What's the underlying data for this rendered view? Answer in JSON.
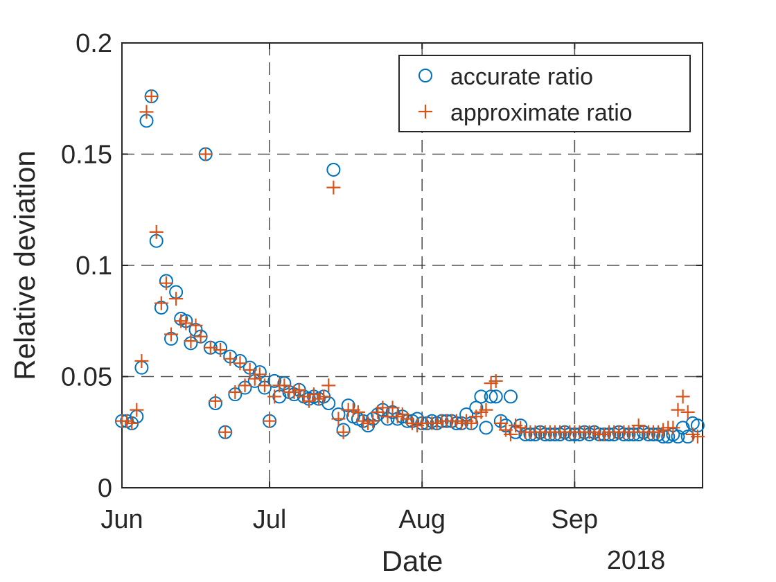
{
  "chart_data": {
    "type": "scatter",
    "xlabel": "Date",
    "ylabel": "Relative deviation",
    "year_label": "2018",
    "x_unit": "days since Jun 1",
    "xlim": [
      0,
      118
    ],
    "ylim": [
      0,
      0.2
    ],
    "grid": true,
    "legend_position": "top-right",
    "x_ticks": [
      {
        "value": 0,
        "label": "Jun"
      },
      {
        "value": 30,
        "label": "Jul"
      },
      {
        "value": 61,
        "label": "Aug"
      },
      {
        "value": 92,
        "label": "Sep"
      }
    ],
    "y_ticks": [
      {
        "value": 0,
        "label": "0"
      },
      {
        "value": 0.05,
        "label": "0.05"
      },
      {
        "value": 0.1,
        "label": "0.1"
      },
      {
        "value": 0.15,
        "label": "0.15"
      },
      {
        "value": 0.2,
        "label": "0.2"
      }
    ],
    "series": [
      {
        "name": "accurate ratio",
        "marker": "circle",
        "color": "#0072BD",
        "x": [
          0,
          1,
          2,
          3,
          4,
          5,
          6,
          7,
          8,
          9,
          10,
          11,
          12,
          13,
          14,
          15,
          16,
          17,
          18,
          19,
          20,
          21,
          22,
          23,
          24,
          25,
          26,
          27,
          28,
          29,
          30,
          31,
          32,
          33,
          34,
          35,
          36,
          37,
          38,
          39,
          40,
          41,
          42,
          43,
          44,
          45,
          46,
          47,
          48,
          49,
          50,
          51,
          52,
          53,
          54,
          55,
          56,
          57,
          58,
          59,
          60,
          61,
          62,
          63,
          64,
          65,
          66,
          67,
          68,
          69,
          70,
          71,
          72,
          73,
          74,
          75,
          76,
          77,
          78,
          79,
          80,
          81,
          82,
          83,
          84,
          85,
          86,
          87,
          88,
          89,
          90,
          91,
          92,
          93,
          94,
          95,
          96,
          97,
          98,
          99,
          100,
          101,
          102,
          103,
          104,
          105,
          106,
          107,
          108,
          109,
          110,
          111,
          112,
          113,
          114,
          115,
          116,
          117
        ],
        "y": [
          0.03,
          0.03,
          0.029,
          0.032,
          0.054,
          0.165,
          0.176,
          0.111,
          0.081,
          0.093,
          0.067,
          0.088,
          0.076,
          0.075,
          0.065,
          0.071,
          0.068,
          0.15,
          0.063,
          0.038,
          0.063,
          0.025,
          0.059,
          0.042,
          0.057,
          0.045,
          0.054,
          0.048,
          0.052,
          0.045,
          0.03,
          0.048,
          0.041,
          0.047,
          0.043,
          0.042,
          0.044,
          0.041,
          0.04,
          0.041,
          0.04,
          0.041,
          0.038,
          0.143,
          0.033,
          0.026,
          0.037,
          0.032,
          0.031,
          0.03,
          0.028,
          0.031,
          0.033,
          0.035,
          0.031,
          0.034,
          0.031,
          0.032,
          0.03,
          0.03,
          0.031,
          0.029,
          0.029,
          0.03,
          0.029,
          0.03,
          0.03,
          0.03,
          0.029,
          0.029,
          0.033,
          0.029,
          0.036,
          0.041,
          0.027,
          0.041,
          0.041,
          0.03,
          0.028,
          0.041,
          0.025,
          0.028,
          0.024,
          0.024,
          0.024,
          0.025,
          0.024,
          0.024,
          0.024,
          0.024,
          0.025,
          0.024,
          0.024,
          0.024,
          0.025,
          0.024,
          0.025,
          0.024,
          0.024,
          0.024,
          0.024,
          0.025,
          0.024,
          0.024,
          0.024,
          0.024,
          0.025,
          0.024,
          0.024,
          0.024,
          0.023,
          0.023,
          0.024,
          0.023,
          0.027,
          0.023,
          0.029,
          0.028
        ]
      },
      {
        "name": "approximate ratio",
        "marker": "plus",
        "color": "#D95319",
        "x": [
          0,
          1,
          2,
          3,
          4,
          5,
          6,
          7,
          8,
          9,
          10,
          11,
          12,
          13,
          14,
          15,
          16,
          17,
          18,
          19,
          20,
          21,
          22,
          23,
          24,
          25,
          26,
          27,
          28,
          29,
          30,
          31,
          32,
          33,
          34,
          35,
          36,
          37,
          38,
          39,
          40,
          41,
          42,
          43,
          44,
          45,
          46,
          47,
          48,
          49,
          50,
          51,
          52,
          53,
          54,
          55,
          56,
          57,
          58,
          59,
          60,
          61,
          62,
          63,
          64,
          65,
          66,
          67,
          68,
          69,
          70,
          71,
          72,
          73,
          74,
          75,
          76,
          77,
          78,
          79,
          80,
          81,
          82,
          83,
          84,
          85,
          86,
          87,
          88,
          89,
          90,
          91,
          92,
          93,
          94,
          95,
          96,
          97,
          98,
          99,
          100,
          101,
          102,
          103,
          104,
          105,
          106,
          107,
          108,
          109,
          110,
          111,
          112,
          113,
          114,
          115,
          116,
          117
        ],
        "y": [
          0.03,
          0.03,
          0.029,
          0.035,
          0.057,
          0.169,
          0.176,
          0.115,
          0.083,
          0.092,
          0.069,
          0.085,
          0.075,
          0.074,
          0.066,
          0.073,
          0.068,
          0.15,
          0.063,
          0.039,
          0.062,
          0.025,
          0.058,
          0.043,
          0.056,
          0.046,
          0.053,
          0.049,
          0.051,
          0.046,
          0.03,
          0.041,
          0.046,
          0.046,
          0.043,
          0.043,
          0.044,
          0.041,
          0.039,
          0.042,
          0.04,
          0.041,
          0.046,
          0.135,
          0.031,
          0.025,
          0.035,
          0.035,
          0.034,
          0.03,
          0.029,
          0.03,
          0.034,
          0.036,
          0.032,
          0.036,
          0.032,
          0.033,
          0.031,
          0.029,
          0.028,
          0.029,
          0.029,
          0.029,
          0.029,
          0.03,
          0.03,
          0.03,
          0.03,
          0.029,
          0.03,
          0.029,
          0.032,
          0.034,
          0.035,
          0.047,
          0.048,
          0.029,
          0.026,
          0.024,
          0.028,
          0.027,
          0.025,
          0.025,
          0.025,
          0.025,
          0.025,
          0.025,
          0.025,
          0.025,
          0.025,
          0.025,
          0.025,
          0.025,
          0.025,
          0.025,
          0.025,
          0.024,
          0.024,
          0.025,
          0.025,
          0.025,
          0.025,
          0.025,
          0.025,
          0.028,
          0.025,
          0.025,
          0.025,
          0.025,
          0.026,
          0.027,
          0.027,
          0.035,
          0.041,
          0.034,
          0.024,
          0.023
        ]
      }
    ]
  }
}
